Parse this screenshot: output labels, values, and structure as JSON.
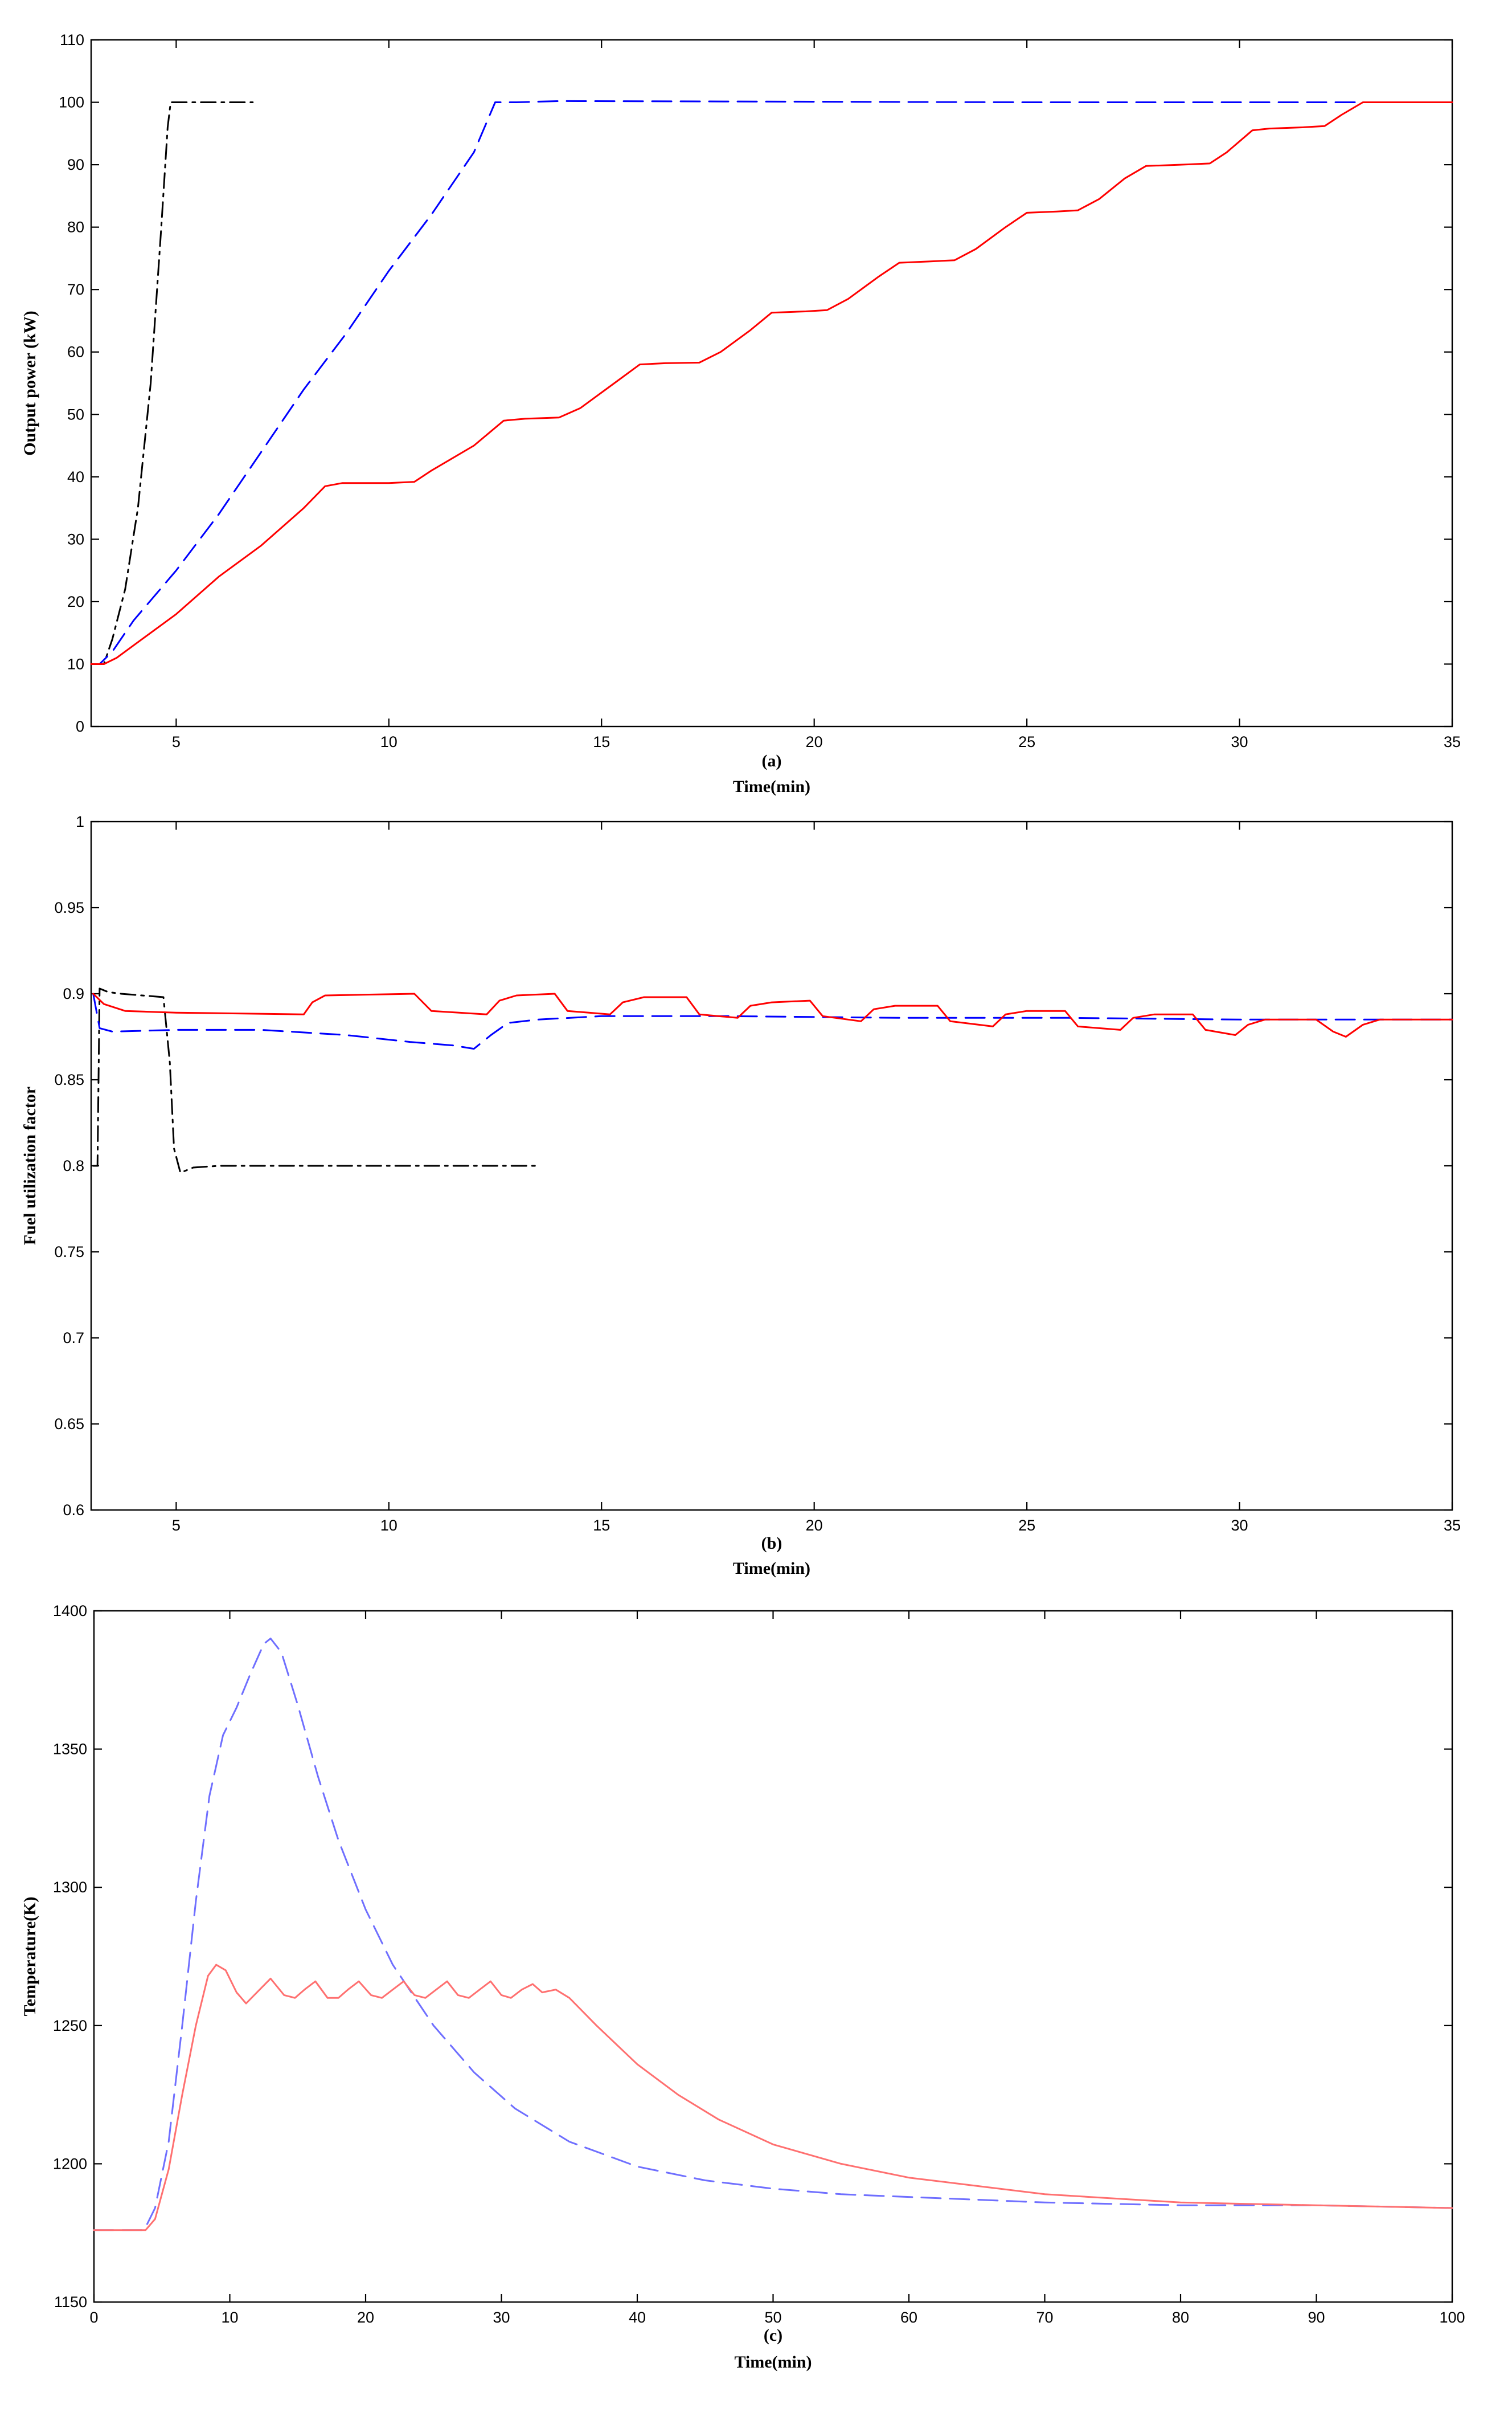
{
  "chart_data": [
    {
      "type": "line",
      "panel_label": "(a)",
      "xlabel": "Time(min)",
      "ylabel": "Output power (kW)",
      "xlim": [
        3,
        35
      ],
      "ylim": [
        0,
        110
      ],
      "xticks": [
        5,
        10,
        15,
        20,
        25,
        30,
        35
      ],
      "yticks": [
        0,
        10,
        20,
        30,
        40,
        50,
        60,
        70,
        80,
        90,
        100,
        110
      ],
      "grid": false,
      "series": [
        {
          "color": "#000000",
          "dash": "dashdot",
          "points": [
            [
              3.0,
              10
            ],
            [
              3.3,
              10
            ],
            [
              3.5,
              14
            ],
            [
              3.8,
              22
            ],
            [
              4.1,
              35
            ],
            [
              4.4,
              55
            ],
            [
              4.65,
              80
            ],
            [
              4.8,
              96
            ],
            [
              4.87,
              100
            ],
            [
              5.2,
              100
            ],
            [
              6.0,
              100
            ],
            [
              6.8,
              100
            ]
          ]
        },
        {
          "color": "#0000ff",
          "dash": "dashed",
          "points": [
            [
              3.0,
              10
            ],
            [
              3.2,
              10
            ],
            [
              3.5,
              12
            ],
            [
              4.0,
              17
            ],
            [
              5.0,
              25
            ],
            [
              6.0,
              34
            ],
            [
              7.0,
              44
            ],
            [
              8.0,
              54
            ],
            [
              9.0,
              63
            ],
            [
              10.0,
              73
            ],
            [
              11.0,
              82
            ],
            [
              12.0,
              92
            ],
            [
              12.5,
              100
            ],
            [
              13.0,
              100
            ],
            [
              14.0,
              100.2
            ],
            [
              20.0,
              100.1
            ],
            [
              25.0,
              100
            ],
            [
              35.0,
              100
            ]
          ]
        },
        {
          "color": "#ff0000",
          "dash": "solid",
          "points": [
            [
              3.0,
              10
            ],
            [
              3.3,
              10
            ],
            [
              3.6,
              11
            ],
            [
              4.2,
              14
            ],
            [
              5.0,
              18
            ],
            [
              6.0,
              24
            ],
            [
              7.0,
              29
            ],
            [
              8.0,
              35
            ],
            [
              8.5,
              38.5
            ],
            [
              8.9,
              39
            ],
            [
              10.0,
              39
            ],
            [
              10.6,
              39.2
            ],
            [
              11.0,
              41
            ],
            [
              12.0,
              45
            ],
            [
              12.7,
              49
            ],
            [
              13.2,
              49.3
            ],
            [
              14.0,
              49.5
            ],
            [
              14.5,
              51
            ],
            [
              15.3,
              55
            ],
            [
              15.9,
              58
            ],
            [
              16.5,
              58.2
            ],
            [
              17.3,
              58.3
            ],
            [
              17.8,
              60
            ],
            [
              18.5,
              63.5
            ],
            [
              19.0,
              66.3
            ],
            [
              19.8,
              66.5
            ],
            [
              20.3,
              66.7
            ],
            [
              20.8,
              68.5
            ],
            [
              21.5,
              72
            ],
            [
              22.0,
              74.3
            ],
            [
              22.7,
              74.5
            ],
            [
              23.3,
              74.7
            ],
            [
              23.8,
              76.5
            ],
            [
              24.5,
              80
            ],
            [
              25.0,
              82.3
            ],
            [
              25.7,
              82.5
            ],
            [
              26.2,
              82.7
            ],
            [
              26.7,
              84.5
            ],
            [
              27.3,
              87.8
            ],
            [
              27.8,
              89.8
            ],
            [
              28.6,
              90
            ],
            [
              29.3,
              90.2
            ],
            [
              29.7,
              92
            ],
            [
              30.3,
              95.5
            ],
            [
              30.7,
              95.8
            ],
            [
              31.5,
              96
            ],
            [
              32.0,
              96.2
            ],
            [
              32.4,
              98
            ],
            [
              32.9,
              100
            ],
            [
              33.5,
              100
            ],
            [
              35.0,
              100
            ]
          ]
        }
      ]
    },
    {
      "type": "line",
      "panel_label": "(b)",
      "xlabel": "Time(min)",
      "ylabel": "Fuel utilization factor",
      "xlim": [
        3,
        35
      ],
      "ylim": [
        0.6,
        1.0
      ],
      "xticks": [
        5,
        10,
        15,
        20,
        25,
        30,
        35
      ],
      "yticks": [
        0.6,
        0.65,
        0.7,
        0.75,
        0.8,
        0.85,
        0.9,
        0.95,
        1
      ],
      "grid": false,
      "series": [
        {
          "color": "#000000",
          "dash": "dashdot",
          "points": [
            [
              3.05,
              0.8
            ],
            [
              3.15,
              0.8
            ],
            [
              3.2,
              0.903
            ],
            [
              3.4,
              0.901
            ],
            [
              3.7,
              0.9
            ],
            [
              4.2,
              0.899
            ],
            [
              4.7,
              0.898
            ],
            [
              4.85,
              0.86
            ],
            [
              4.95,
              0.81
            ],
            [
              5.1,
              0.796
            ],
            [
              5.4,
              0.799
            ],
            [
              6.0,
              0.8
            ],
            [
              8.0,
              0.8
            ],
            [
              10.0,
              0.8
            ],
            [
              13.5,
              0.8
            ]
          ]
        },
        {
          "color": "#0000ff",
          "dash": "dashed",
          "points": [
            [
              3.05,
              0.9
            ],
            [
              3.2,
              0.88
            ],
            [
              3.5,
              0.878
            ],
            [
              5.0,
              0.879
            ],
            [
              7.0,
              0.879
            ],
            [
              9.0,
              0.876
            ],
            [
              10.5,
              0.872
            ],
            [
              11.5,
              0.87
            ],
            [
              12.0,
              0.868
            ],
            [
              12.4,
              0.876
            ],
            [
              12.8,
              0.883
            ],
            [
              13.5,
              0.885
            ],
            [
              15.0,
              0.887
            ],
            [
              18.0,
              0.887
            ],
            [
              22.0,
              0.886
            ],
            [
              26.0,
              0.886
            ],
            [
              30.0,
              0.885
            ],
            [
              35.0,
              0.885
            ]
          ]
        },
        {
          "color": "#ff0000",
          "dash": "solid",
          "points": [
            [
              3.05,
              0.9
            ],
            [
              3.3,
              0.894
            ],
            [
              3.8,
              0.89
            ],
            [
              5.0,
              0.889
            ],
            [
              8.0,
              0.888
            ],
            [
              8.2,
              0.895
            ],
            [
              8.5,
              0.899
            ],
            [
              10.6,
              0.9
            ],
            [
              11.0,
              0.89
            ],
            [
              12.3,
              0.888
            ],
            [
              12.6,
              0.896
            ],
            [
              13.0,
              0.899
            ],
            [
              13.9,
              0.9
            ],
            [
              14.2,
              0.89
            ],
            [
              15.2,
              0.888
            ],
            [
              15.5,
              0.895
            ],
            [
              16.0,
              0.898
            ],
            [
              17.0,
              0.898
            ],
            [
              17.3,
              0.888
            ],
            [
              18.2,
              0.886
            ],
            [
              18.5,
              0.893
            ],
            [
              19.0,
              0.895
            ],
            [
              19.9,
              0.896
            ],
            [
              20.2,
              0.887
            ],
            [
              21.1,
              0.884
            ],
            [
              21.4,
              0.891
            ],
            [
              21.9,
              0.893
            ],
            [
              22.9,
              0.893
            ],
            [
              23.2,
              0.884
            ],
            [
              24.2,
              0.881
            ],
            [
              24.5,
              0.888
            ],
            [
              25.0,
              0.89
            ],
            [
              25.9,
              0.89
            ],
            [
              26.2,
              0.881
            ],
            [
              27.2,
              0.879
            ],
            [
              27.5,
              0.886
            ],
            [
              28.0,
              0.888
            ],
            [
              28.9,
              0.888
            ],
            [
              29.2,
              0.879
            ],
            [
              29.9,
              0.876
            ],
            [
              30.2,
              0.882
            ],
            [
              30.6,
              0.885
            ],
            [
              31.8,
              0.885
            ],
            [
              32.2,
              0.878
            ],
            [
              32.5,
              0.875
            ],
            [
              32.9,
              0.882
            ],
            [
              33.3,
              0.885
            ],
            [
              35.0,
              0.885
            ]
          ]
        }
      ]
    },
    {
      "type": "line",
      "panel_label": "(c)",
      "xlabel": "Time(min)",
      "ylabel": "Temperature(K)",
      "xlim": [
        0,
        100
      ],
      "ylim": [
        1150,
        1400
      ],
      "xticks": [
        0,
        10,
        20,
        30,
        40,
        50,
        60,
        70,
        80,
        90,
        100
      ],
      "yticks": [
        1150,
        1200,
        1250,
        1300,
        1350,
        1400
      ],
      "grid": false,
      "series": [
        {
          "color": "#6f6fff",
          "dash": "dashed",
          "points": [
            [
              0,
              1176
            ],
            [
              3,
              1176
            ],
            [
              3.7,
              1176
            ],
            [
              4.5,
              1184
            ],
            [
              5.5,
              1208
            ],
            [
              6.5,
              1250
            ],
            [
              7.5,
              1295
            ],
            [
              8.5,
              1333
            ],
            [
              9.5,
              1355
            ],
            [
              10.5,
              1365
            ],
            [
              11.5,
              1377
            ],
            [
              12.5,
              1388
            ],
            [
              13.0,
              1390
            ],
            [
              13.8,
              1385
            ],
            [
              15.0,
              1366
            ],
            [
              16.5,
              1340
            ],
            [
              18.0,
              1317
            ],
            [
              20.0,
              1292
            ],
            [
              22.0,
              1272
            ],
            [
              25.0,
              1250
            ],
            [
              28.0,
              1233
            ],
            [
              31.0,
              1220
            ],
            [
              35.0,
              1208
            ],
            [
              40.0,
              1199
            ],
            [
              45.0,
              1194
            ],
            [
              50.0,
              1191
            ],
            [
              55.0,
              1189
            ],
            [
              60.0,
              1188
            ],
            [
              70.0,
              1186
            ],
            [
              80.0,
              1185
            ],
            [
              90.0,
              1185
            ],
            [
              100.0,
              1184
            ]
          ]
        },
        {
          "color": "#ff7070",
          "dash": "solid",
          "points": [
            [
              0,
              1176
            ],
            [
              3,
              1176
            ],
            [
              3.8,
              1176
            ],
            [
              4.5,
              1180
            ],
            [
              5.5,
              1198
            ],
            [
              6.5,
              1225
            ],
            [
              7.5,
              1250
            ],
            [
              8.4,
              1268
            ],
            [
              9.0,
              1272
            ],
            [
              9.7,
              1270
            ],
            [
              10.5,
              1262
            ],
            [
              11.2,
              1258
            ],
            [
              12.0,
              1262
            ],
            [
              13.0,
              1267
            ],
            [
              14.0,
              1261
            ],
            [
              14.8,
              1260
            ],
            [
              15.5,
              1263
            ],
            [
              16.3,
              1266
            ],
            [
              17.2,
              1260
            ],
            [
              18.0,
              1260
            ],
            [
              18.7,
              1263
            ],
            [
              19.5,
              1266
            ],
            [
              20.4,
              1261
            ],
            [
              21.2,
              1260
            ],
            [
              22.0,
              1263
            ],
            [
              22.8,
              1266
            ],
            [
              23.6,
              1261
            ],
            [
              24.4,
              1260
            ],
            [
              25.2,
              1263
            ],
            [
              26.0,
              1266
            ],
            [
              26.8,
              1261
            ],
            [
              27.6,
              1260
            ],
            [
              28.4,
              1263
            ],
            [
              29.2,
              1266
            ],
            [
              30.0,
              1261
            ],
            [
              30.7,
              1260
            ],
            [
              31.5,
              1263
            ],
            [
              32.3,
              1265
            ],
            [
              33.0,
              1262
            ],
            [
              34.0,
              1263
            ],
            [
              35.0,
              1260
            ],
            [
              37.0,
              1250
            ],
            [
              40.0,
              1236
            ],
            [
              43.0,
              1225
            ],
            [
              46.0,
              1216
            ],
            [
              50.0,
              1207
            ],
            [
              55.0,
              1200
            ],
            [
              60.0,
              1195
            ],
            [
              65.0,
              1192
            ],
            [
              70.0,
              1189
            ],
            [
              80.0,
              1186
            ],
            [
              90.0,
              1185
            ],
            [
              100.0,
              1184
            ]
          ]
        }
      ]
    }
  ]
}
